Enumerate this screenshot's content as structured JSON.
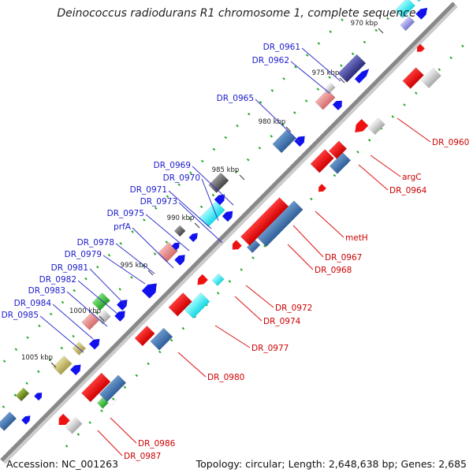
{
  "title": "Deinococcus radiodurans R1 chromosome 1, complete sequence",
  "footer": {
    "accession": "Accession: NC_001263",
    "topology": "Topology: circular; Length: 2,648,638 bp; Genes: 2,685"
  },
  "colors": {
    "backbone": "#888888",
    "backbone_shade": "#555555",
    "forward_label": "#1a1acc",
    "reverse_label": "#cc0000",
    "leader_forward": "#3333cc",
    "leader_reverse": "#dd1111",
    "tick": "#22aa22",
    "kbp_label": "#222222"
  },
  "ticks": [
    {
      "label": "970 kbp"
    },
    {
      "label": "975 kbp"
    },
    {
      "label": "980 kbp"
    },
    {
      "label": "985 kbp"
    },
    {
      "label": "990 kbp"
    },
    {
      "label": "995 kbp"
    },
    {
      "label": "1000 kbp"
    },
    {
      "label": "1005 kbp"
    }
  ],
  "forward_labels": [
    {
      "text": "DR_0961"
    },
    {
      "text": "DR_0962"
    },
    {
      "text": "DR_0965"
    },
    {
      "text": "DR_0969"
    },
    {
      "text": "DR_0970"
    },
    {
      "text": "DR_0971"
    },
    {
      "text": "DR_0973"
    },
    {
      "text": "DR_0975"
    },
    {
      "text": "prfA"
    },
    {
      "text": "DR_0978"
    },
    {
      "text": "DR_0979"
    },
    {
      "text": "DR_0981"
    },
    {
      "text": "DR_0982"
    },
    {
      "text": "DR_0983"
    },
    {
      "text": "DR_0984"
    },
    {
      "text": "DR_0985"
    }
  ],
  "reverse_labels": [
    {
      "text": "DR_0960"
    },
    {
      "text": "argC"
    },
    {
      "text": "DR_0964"
    },
    {
      "text": "metH"
    },
    {
      "text": "DR_0967"
    },
    {
      "text": "DR_0968"
    },
    {
      "text": "DR_0972"
    },
    {
      "text": "DR_0974"
    },
    {
      "text": "DR_0977"
    },
    {
      "text": "DR_0980"
    },
    {
      "text": "DR_0986"
    },
    {
      "text": "DR_0987"
    }
  ]
}
